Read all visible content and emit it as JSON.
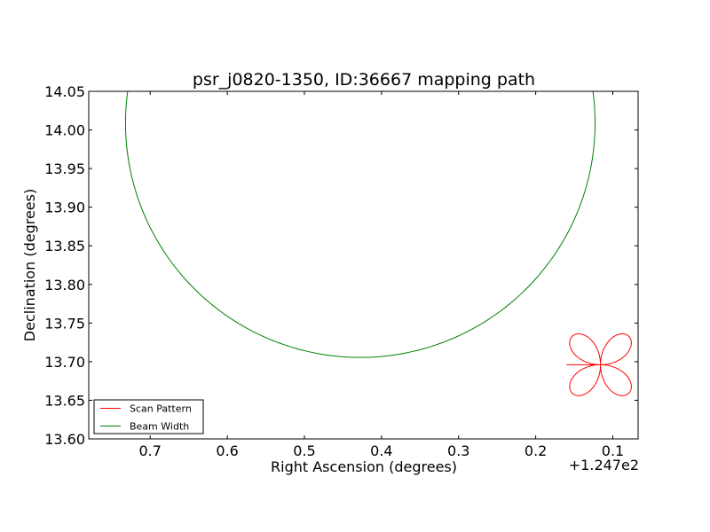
{
  "chart_data": {
    "type": "line",
    "title": "psr_j0820-1350, ID:36667 mapping path",
    "xlabel": "Right Ascension (degrees)",
    "ylabel": "Declination (degrees)",
    "x_offset_label": "+1.247e2",
    "x_offset": 124.7,
    "xlim": [
      0.7797,
      0.0672
    ],
    "ylim": [
      13.6,
      14.05
    ],
    "x_ticks": [
      0.7,
      0.6,
      0.5,
      0.4,
      0.3,
      0.2,
      0.1
    ],
    "x_tick_labels": [
      "0.7",
      "0.6",
      "0.5",
      "0.4",
      "0.3",
      "0.2",
      "0.1"
    ],
    "y_ticks": [
      13.6,
      13.65,
      13.7,
      13.75,
      13.8,
      13.85,
      13.9,
      13.95,
      14.0,
      14.05
    ],
    "y_tick_labels": [
      "13.60",
      "13.65",
      "13.70",
      "13.75",
      "13.80",
      "13.85",
      "13.90",
      "13.95",
      "14.00",
      "14.05"
    ],
    "grid": false,
    "legend_position": "lower-left",
    "series": [
      {
        "name": "Scan Pattern",
        "color": "#ff0000",
        "kind": "rose",
        "center": [
          0.116,
          13.696
        ],
        "radius_x": 0.052,
        "radius_y": 0.052
      },
      {
        "name": "Beam Width",
        "color": "#008000",
        "kind": "circle",
        "center": [
          0.4275,
          14.009
        ],
        "radius_x": 0.3045,
        "radius_y": 0.3035
      }
    ]
  }
}
